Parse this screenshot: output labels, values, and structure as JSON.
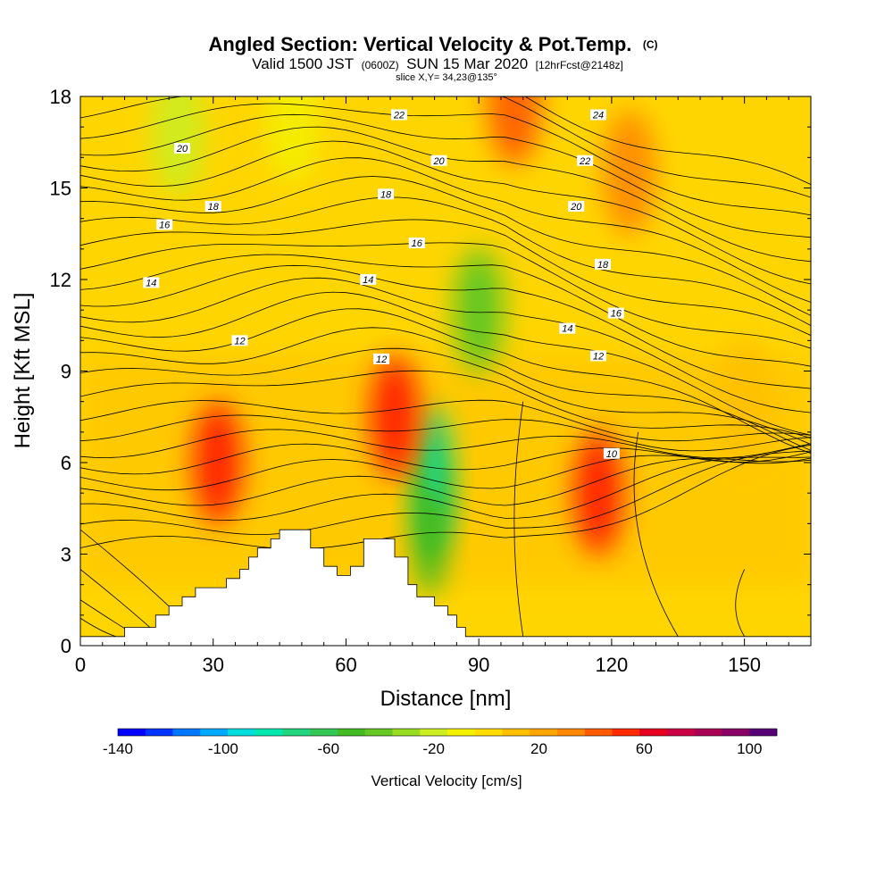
{
  "chart_data": {
    "type": "heatmap",
    "title": "Angled Section: Vertical Velocity & Pot.Temp.",
    "title_units": "(C)",
    "subtitle": {
      "valid_prefix": "Valid 1500 JST",
      "utc": "(0600Z)",
      "date": "SUN 15 Mar 2020",
      "forecast": "[12hrFcst@2148z]"
    },
    "slice_text": "slice X,Y= 34,23@135°",
    "xlabel": "Distance [nm]",
    "ylabel": "Height [Kft MSL]",
    "xlim": [
      0,
      165
    ],
    "ylim": [
      0,
      18
    ],
    "x_ticks": [
      "0",
      "30",
      "60",
      "90",
      "120",
      "150"
    ],
    "y_ticks": [
      "0",
      "3",
      "6",
      "9",
      "12",
      "15",
      "18"
    ],
    "colorbar": {
      "title": "Vertical Velocity [cm/s]",
      "tick_labels": [
        "-140",
        "-100",
        "-60",
        "-20",
        "20",
        "60",
        "100"
      ],
      "colors": [
        "#0000ff",
        "#0033ff",
        "#0077ff",
        "#00aaff",
        "#00dddd",
        "#00e8b0",
        "#22d680",
        "#33c855",
        "#44bb22",
        "#66c822",
        "#99dd22",
        "#ccee22",
        "#f3f000",
        "#ffdd00",
        "#ffc000",
        "#ffa500",
        "#ff8800",
        "#ff5a00",
        "#ff2a00",
        "#e80020",
        "#cc0044",
        "#aa0055",
        "#880066",
        "#550077"
      ]
    },
    "field_samples": [
      {
        "x": 22,
        "y": 16.8,
        "w": -30
      },
      {
        "x": 48,
        "y": 17.2,
        "w": -20
      },
      {
        "x": 90,
        "y": 11.0,
        "w": -45
      },
      {
        "x": 80,
        "y": 5.5,
        "w": -80
      },
      {
        "x": 79,
        "y": 4.0,
        "w": -60
      },
      {
        "x": 31,
        "y": 6.0,
        "w": 45
      },
      {
        "x": 71,
        "y": 7.5,
        "w": 40
      },
      {
        "x": 117,
        "y": 5.0,
        "w": 40
      },
      {
        "x": 98,
        "y": 17.8,
        "w": 30
      },
      {
        "x": 124,
        "y": 15.5,
        "w": 25
      },
      {
        "x": 150,
        "y": 8.0,
        "w": 5
      }
    ],
    "theta_contour_labels": [
      {
        "text": "22",
        "x": 72,
        "y": 17.4
      },
      {
        "text": "24",
        "x": 117,
        "y": 17.4
      },
      {
        "text": "20",
        "x": 23,
        "y": 16.3
      },
      {
        "text": "20",
        "x": 81,
        "y": 15.9
      },
      {
        "text": "22",
        "x": 114,
        "y": 15.9
      },
      {
        "text": "18",
        "x": 30,
        "y": 14.4
      },
      {
        "text": "18",
        "x": 69,
        "y": 14.8
      },
      {
        "text": "20",
        "x": 112,
        "y": 14.4
      },
      {
        "text": "16",
        "x": 19,
        "y": 13.8
      },
      {
        "text": "16",
        "x": 76,
        "y": 13.2
      },
      {
        "text": "18",
        "x": 118,
        "y": 12.5
      },
      {
        "text": "14",
        "x": 16,
        "y": 11.9
      },
      {
        "text": "14",
        "x": 65,
        "y": 12.0
      },
      {
        "text": "16",
        "x": 121,
        "y": 10.9
      },
      {
        "text": "12",
        "x": 36,
        "y": 10.0
      },
      {
        "text": "14",
        "x": 110,
        "y": 10.4
      },
      {
        "text": "12",
        "x": 68,
        "y": 9.4
      },
      {
        "text": "12",
        "x": 117,
        "y": 9.5
      },
      {
        "text": "10",
        "x": 120,
        "y": 6.3
      }
    ],
    "terrain": [
      [
        0,
        0.3
      ],
      [
        10,
        0.3
      ],
      [
        10,
        0.6
      ],
      [
        17,
        0.6
      ],
      [
        17,
        1.0
      ],
      [
        20,
        1.0
      ],
      [
        20,
        1.3
      ],
      [
        23,
        1.3
      ],
      [
        23,
        1.6
      ],
      [
        26,
        1.6
      ],
      [
        26,
        1.9
      ],
      [
        33,
        1.9
      ],
      [
        33,
        2.2
      ],
      [
        36,
        2.2
      ],
      [
        36,
        2.5
      ],
      [
        38,
        2.5
      ],
      [
        38,
        2.9
      ],
      [
        40,
        2.9
      ],
      [
        40,
        3.2
      ],
      [
        43,
        3.2
      ],
      [
        43,
        3.5
      ],
      [
        45,
        3.5
      ],
      [
        45,
        3.8
      ],
      [
        52,
        3.8
      ],
      [
        52,
        3.2
      ],
      [
        55,
        3.2
      ],
      [
        55,
        2.6
      ],
      [
        58,
        2.6
      ],
      [
        58,
        2.3
      ],
      [
        61,
        2.3
      ],
      [
        61,
        2.6
      ],
      [
        64,
        2.6
      ],
      [
        64,
        3.5
      ],
      [
        71,
        3.5
      ],
      [
        71,
        2.9
      ],
      [
        74,
        2.9
      ],
      [
        74,
        2.0
      ],
      [
        76,
        2.0
      ],
      [
        76,
        1.6
      ],
      [
        80,
        1.6
      ],
      [
        80,
        1.3
      ],
      [
        83,
        1.3
      ],
      [
        83,
        1.0
      ],
      [
        85,
        1.0
      ],
      [
        85,
        0.6
      ],
      [
        87,
        0.6
      ],
      [
        87,
        0.3
      ],
      [
        165,
        0.3
      ]
    ]
  }
}
